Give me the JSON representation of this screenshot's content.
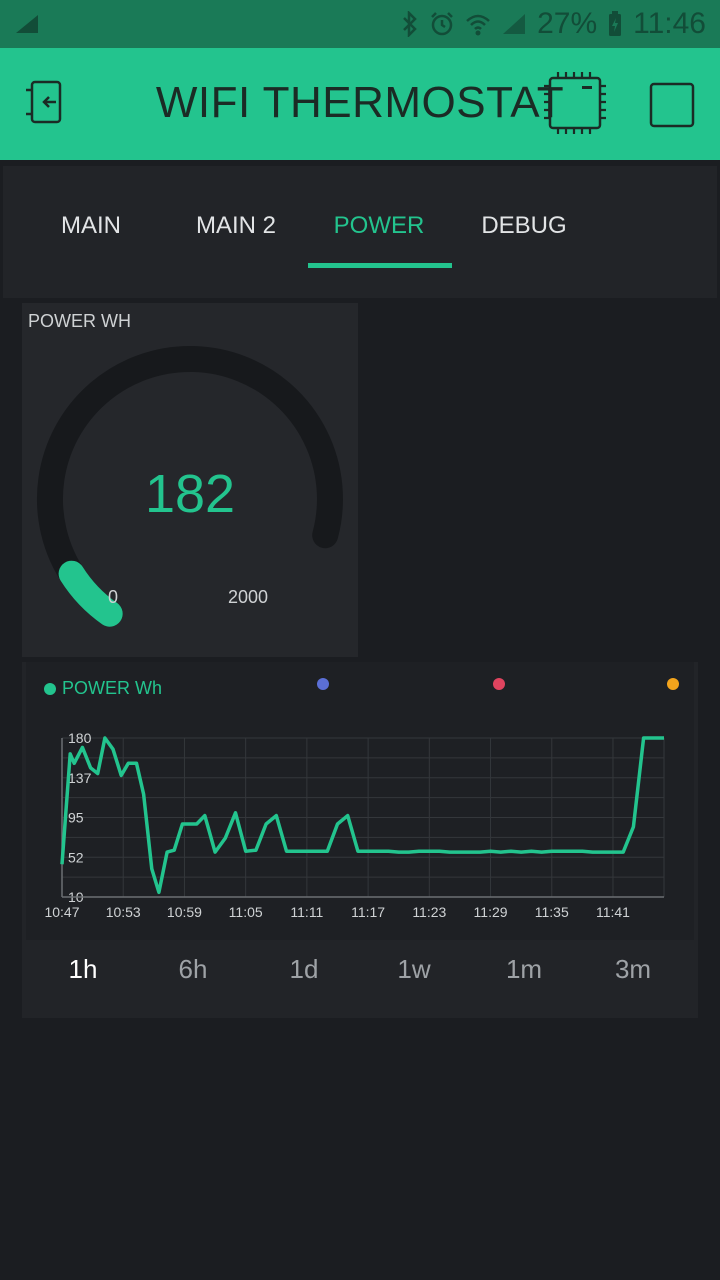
{
  "status_bar": {
    "battery": "27%",
    "time": "11:46"
  },
  "app_bar": {
    "title": "WIFI THERMOSTAT"
  },
  "tabs": [
    {
      "label": "MAIN",
      "active": false
    },
    {
      "label": "MAIN 2",
      "active": false
    },
    {
      "label": "POWER",
      "active": true
    },
    {
      "label": "DEBUG",
      "active": false
    }
  ],
  "gauge": {
    "label": "POWER WH",
    "value": "182",
    "min": "0",
    "max": "2000",
    "fraction": 0.091,
    "color": "#23c48e"
  },
  "legend": [
    {
      "label": "POWER Wh",
      "color": "#23c48e"
    },
    {
      "label": "",
      "color": "#5b6fd6"
    },
    {
      "label": "",
      "color": "#e0445f"
    },
    {
      "label": "",
      "color": "#f3a41c"
    }
  ],
  "chart_data": {
    "type": "line",
    "title": "",
    "xlabel": "",
    "ylabel": "",
    "y_ticks": [
      "180",
      "137",
      "95",
      "52",
      "10"
    ],
    "y_tick_values": [
      180,
      137,
      95,
      52,
      10
    ],
    "x_ticks": [
      "10:47",
      "10:53",
      "10:59",
      "11:05",
      "11:11",
      "11:17",
      "11:23",
      "11:29",
      "11:35",
      "11:41"
    ],
    "ylim": [
      10,
      180
    ],
    "grid": true,
    "series": [
      {
        "name": "POWER Wh",
        "color": "#23c48e",
        "x_minutes": [
          0,
          0.8,
          1.2,
          2,
          2.8,
          3.5,
          4.2,
          5,
          5.8,
          6.5,
          7.3,
          8,
          8.8,
          9.5,
          10.3,
          11,
          11.8,
          12.5,
          13.2,
          14,
          15,
          16,
          17,
          18,
          19,
          20,
          21,
          22,
          23,
          24,
          25,
          26,
          27,
          28,
          29,
          30,
          31,
          32,
          33,
          34,
          35,
          36,
          37,
          38,
          39,
          40,
          41,
          42,
          43,
          44,
          45,
          46,
          47,
          48,
          49,
          50,
          51,
          52,
          53,
          54,
          55,
          56,
          57,
          58,
          59
        ],
        "values": [
          45,
          163,
          153,
          170,
          148,
          142,
          180,
          168,
          140,
          153,
          153,
          120,
          40,
          15,
          58,
          60,
          88,
          88,
          88,
          97,
          58,
          73,
          100,
          59,
          60,
          88,
          97,
          59,
          59,
          59,
          59,
          59,
          88,
          97,
          59,
          59,
          59,
          59,
          58,
          58,
          59,
          59,
          59,
          58,
          58,
          58,
          58,
          59,
          58,
          59,
          58,
          59,
          58,
          59,
          59,
          59,
          59,
          58,
          58,
          58,
          58,
          85,
          180,
          180,
          180
        ]
      }
    ]
  },
  "ranges": [
    {
      "label": "1h",
      "active": true
    },
    {
      "label": "6h",
      "active": false
    },
    {
      "label": "1d",
      "active": false
    },
    {
      "label": "1w",
      "active": false
    },
    {
      "label": "1m",
      "active": false
    },
    {
      "label": "3m",
      "active": false
    }
  ]
}
